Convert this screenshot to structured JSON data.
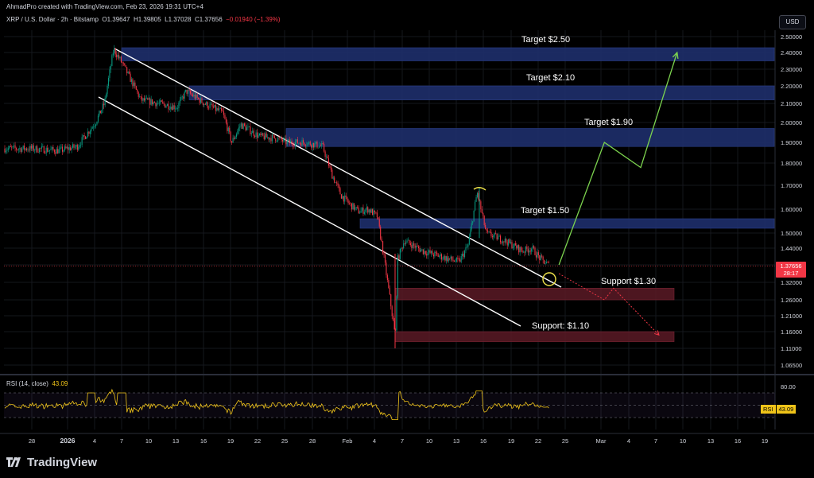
{
  "header": {
    "attribution": "AhmadPro created with TradingView.com, Feb 23, 2026 19:31 UTC+4",
    "symbol": "XRP / U.S. Dollar · 2h · Bitstamp",
    "o_label": "O",
    "o": "1.39647",
    "h_label": "H",
    "h": "1.39805",
    "l_label": "L",
    "l": "1.37028",
    "c_label": "C",
    "c": "1.37656",
    "change": "−0.01940 (−1.39%)"
  },
  "currency_button": "USD",
  "price_axis": {
    "labels": [
      "2.50000",
      "2.40000",
      "2.30000",
      "2.20000",
      "2.10000",
      "2.00000",
      "1.90000",
      "1.80000",
      "1.70000",
      "1.60000",
      "1.50000",
      "1.44000",
      "1.38000",
      "1.32000",
      "1.26000",
      "1.21000",
      "1.16000",
      "1.11000",
      "1.06500"
    ],
    "current_price": "1.37656",
    "countdown": "28:17"
  },
  "time_axis": {
    "labels": [
      "28",
      "2026",
      "4",
      "7",
      "10",
      "13",
      "16",
      "19",
      "22",
      "25",
      "28",
      "Feb",
      "4",
      "7",
      "10",
      "13",
      "16",
      "19",
      "22",
      "25",
      "Mar",
      "4",
      "7",
      "10",
      "13",
      "16",
      "19"
    ]
  },
  "annotations": {
    "target_250": "Target $2.50",
    "target_210": "Target $2.10",
    "target_190": "Target $1.90",
    "target_150": "Target $1.50",
    "support_130": "Support $1.30",
    "support_110": "Support: $1.10"
  },
  "rsi": {
    "title": "RSI (14, close)",
    "value": "43.09",
    "tag_label": "RSI",
    "upper_label": "80.00"
  },
  "branding": {
    "logo_text": "TradingView"
  },
  "colors": {
    "background": "#000000",
    "up_candle": "#089981",
    "down_candle": "#f23645",
    "target_zone": "#1e2f6b",
    "support_zone": "#5a1a26",
    "projection": "#7cd34e",
    "bear_projection": "#f23645",
    "channel": "#ffffff",
    "rsi_line": "#f0c419"
  },
  "chart_data": {
    "type": "candlestick",
    "title": "XRP / U.S. Dollar · 2h · Bitstamp",
    "x_axis": "date (Dec 28 2025 – Mar 19 2026)",
    "ylim": [
      1.05,
      2.55
    ],
    "series": [
      {
        "name": "XRP/USD approx closes",
        "points": [
          [
            "Dec 28",
            1.87
          ],
          [
            "Dec 31",
            1.86
          ],
          [
            "Jan 2",
            1.88
          ],
          [
            "Jan 4",
            2.0
          ],
          [
            "Jan 5",
            2.1
          ],
          [
            "Jan 6",
            2.42
          ],
          [
            "Jan 7",
            2.33
          ],
          [
            "Jan 9",
            2.12
          ],
          [
            "Jan 11",
            2.1
          ],
          [
            "Jan 13",
            2.08
          ],
          [
            "Jan 14",
            2.17
          ],
          [
            "Jan 16",
            2.1
          ],
          [
            "Jan 18",
            2.05
          ],
          [
            "Jan 19",
            1.9
          ],
          [
            "Jan 20",
            1.99
          ],
          [
            "Jan 22",
            1.93
          ],
          [
            "Jan 24",
            1.92
          ],
          [
            "Jan 25",
            1.9
          ],
          [
            "Jan 27",
            1.9
          ],
          [
            "Jan 29",
            1.88
          ],
          [
            "Jan 30",
            1.75
          ],
          [
            "Jan 31",
            1.66
          ],
          [
            "Feb 1",
            1.62
          ],
          [
            "Feb 2",
            1.59
          ],
          [
            "Feb 3",
            1.6
          ],
          [
            "Feb 4",
            1.57
          ],
          [
            "Feb 5",
            1.35
          ],
          [
            "Feb 6",
            1.14
          ],
          [
            "Feb 6",
            1.4
          ],
          [
            "Feb 7",
            1.47
          ],
          [
            "Feb 9",
            1.43
          ],
          [
            "Feb 11",
            1.41
          ],
          [
            "Feb 13",
            1.39
          ],
          [
            "Feb 14",
            1.45
          ],
          [
            "Feb 15",
            1.67
          ],
          [
            "Feb 16",
            1.5
          ],
          [
            "Feb 18",
            1.47
          ],
          [
            "Feb 20",
            1.43
          ],
          [
            "Feb 21",
            1.44
          ],
          [
            "Feb 22",
            1.4
          ],
          [
            "Feb 23",
            1.376
          ]
        ]
      }
    ],
    "zones": [
      {
        "label": "Target $2.50",
        "low": 2.35,
        "high": 2.43
      },
      {
        "label": "Target $2.10",
        "low": 2.12,
        "high": 2.2
      },
      {
        "label": "Target $1.90",
        "low": 1.88,
        "high": 1.97
      },
      {
        "label": "Target $1.50",
        "low": 1.52,
        "high": 1.56
      },
      {
        "label": "Support $1.30",
        "low": 1.26,
        "high": 1.3
      },
      {
        "label": "Support: $1.10",
        "low": 1.13,
        "high": 1.16
      }
    ],
    "projection": [
      [
        "Feb 24",
        1.38
      ],
      [
        "Mar 1",
        1.9
      ],
      [
        "Mar 5",
        1.78
      ],
      [
        "Mar 9",
        2.4
      ]
    ],
    "bear_projection": [
      [
        "Feb 24",
        1.35
      ],
      [
        "Mar 1",
        1.26
      ],
      [
        "Mar 2",
        1.3
      ],
      [
        "Mar 7",
        1.15
      ]
    ],
    "rsi": {
      "min": 0,
      "max": 100,
      "upper": 80,
      "current": 43.09
    }
  }
}
